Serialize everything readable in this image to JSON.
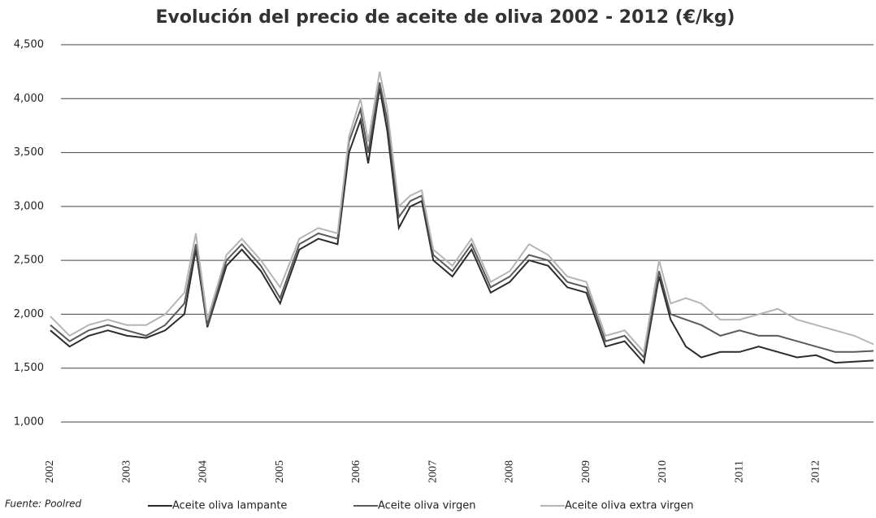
{
  "chart_data": {
    "type": "line",
    "title": "Evolución del precio de aceite de oliva 2002 - 2012 (€/kg)",
    "source": "Fuente: Poolred",
    "x": [
      2002,
      2002.25,
      2002.5,
      2002.75,
      2003,
      2003.25,
      2003.5,
      2003.75,
      2003.9,
      2004.05,
      2004.3,
      2004.5,
      2004.75,
      2005,
      2005.25,
      2005.5,
      2005.75,
      2005.9,
      2006.05,
      2006.15,
      2006.3,
      2006.4,
      2006.55,
      2006.7,
      2006.85,
      2007,
      2007.25,
      2007.5,
      2007.75,
      2008,
      2008.25,
      2008.5,
      2008.75,
      2009,
      2009.25,
      2009.5,
      2009.75,
      2009.95,
      2010.1,
      2010.3,
      2010.5,
      2010.75,
      2011,
      2011.25,
      2011.5,
      2011.75,
      2012,
      2012.25,
      2012.5,
      2012.75
    ],
    "series": [
      {
        "name": "Aceite oliva lampante",
        "color": "#2b2b2b",
        "values": [
          1850,
          1700,
          1800,
          1850,
          1800,
          1780,
          1850,
          2000,
          2600,
          1880,
          2450,
          2600,
          2400,
          2100,
          2600,
          2700,
          2650,
          3500,
          3800,
          3400,
          4100,
          3700,
          2800,
          3000,
          3050,
          2500,
          2350,
          2600,
          2200,
          2300,
          2500,
          2450,
          2250,
          2200,
          1700,
          1750,
          1550,
          2350,
          1950,
          1700,
          1600,
          1650,
          1650,
          1700,
          1650,
          1600,
          1620,
          1550,
          1560,
          1570
        ]
      },
      {
        "name": "Aceite oliva virgen",
        "color": "#5a5a5a",
        "values": [
          1900,
          1750,
          1850,
          1900,
          1850,
          1800,
          1900,
          2100,
          2650,
          1900,
          2500,
          2650,
          2450,
          2150,
          2650,
          2750,
          2700,
          3600,
          3900,
          3500,
          4150,
          3800,
          2900,
          3050,
          3100,
          2550,
          2400,
          2650,
          2250,
          2350,
          2550,
          2500,
          2300,
          2250,
          1750,
          1800,
          1600,
          2400,
          2000,
          1950,
          1900,
          1800,
          1850,
          1800,
          1800,
          1750,
          1700,
          1650,
          1650,
          1660
        ]
      },
      {
        "name": "Aceite oliva extra virgen",
        "color": "#b5b5b5",
        "values": [
          1980,
          1800,
          1900,
          1950,
          1900,
          1900,
          2000,
          2200,
          2750,
          1950,
          2550,
          2700,
          2500,
          2250,
          2700,
          2800,
          2750,
          3650,
          4000,
          3600,
          4250,
          3900,
          3000,
          3100,
          3150,
          2600,
          2450,
          2700,
          2300,
          2400,
          2650,
          2550,
          2350,
          2300,
          1800,
          1850,
          1650,
          2500,
          2100,
          2150,
          2100,
          1950,
          1950,
          2000,
          2050,
          1950,
          1900,
          1850,
          1800,
          1720
        ]
      }
    ],
    "xlim": [
      2002,
      2012.75
    ],
    "xticks": [
      2002,
      2003,
      2004,
      2005,
      2006,
      2007,
      2008,
      2009,
      2010,
      2011,
      2012
    ],
    "ylim": [
      1000,
      4500
    ],
    "yticks": [
      {
        "value": 1000,
        "label": "1,000"
      },
      {
        "value": 1500,
        "label": "1,500"
      },
      {
        "value": 2000,
        "label": "2,000"
      },
      {
        "value": 2500,
        "label": "2,500"
      },
      {
        "value": 3000,
        "label": "3,000"
      },
      {
        "value": 3500,
        "label": "3,500"
      },
      {
        "value": 4000,
        "label": "4,000"
      },
      {
        "value": 4500,
        "label": "4,500"
      }
    ],
    "grid": true
  }
}
